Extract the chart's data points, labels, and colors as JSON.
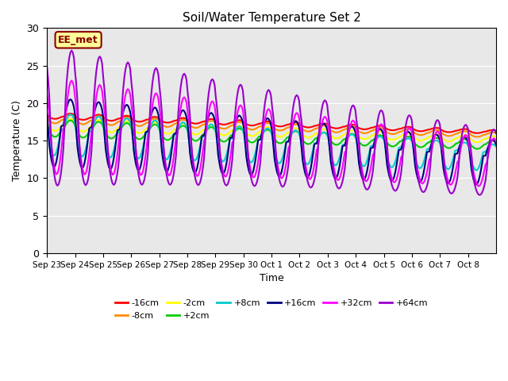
{
  "title": "Soil/Water Temperature Set 2",
  "xlabel": "Time",
  "ylabel": "Temperature (C)",
  "ylim": [
    0,
    30
  ],
  "yticks": [
    0,
    5,
    10,
    15,
    20,
    25,
    30
  ],
  "annotation_text": "EE_met",
  "annotation_color": "#8B0000",
  "annotation_bg": "#FFFF99",
  "background_color": "#E8E8E8",
  "series": [
    {
      "label": "-16cm",
      "color": "#FF0000",
      "lw": 1.5
    },
    {
      "label": "-8cm",
      "color": "#FF8C00",
      "lw": 1.5
    },
    {
      "label": "-2cm",
      "color": "#FFFF00",
      "lw": 1.5
    },
    {
      "label": "+2cm",
      "color": "#00CC00",
      "lw": 1.5
    },
    {
      "label": "+8cm",
      "color": "#00CCCC",
      "lw": 1.5
    },
    {
      "label": "+16cm",
      "color": "#000080",
      "lw": 1.5
    },
    {
      "label": "+32cm",
      "color": "#FF00FF",
      "lw": 1.5
    },
    {
      "label": "+64cm",
      "color": "#9900CC",
      "lw": 1.5
    }
  ],
  "x_tick_labels": [
    "Sep 23",
    "Sep 24",
    "Sep 25",
    "Sep 26",
    "Sep 27",
    "Sep 28",
    "Sep 29",
    "Sep 30",
    "Oct 1",
    "Oct 2",
    "Oct 3",
    "Oct 4",
    "Oct 5",
    "Oct 6",
    "Oct 7",
    "Oct 8"
  ]
}
